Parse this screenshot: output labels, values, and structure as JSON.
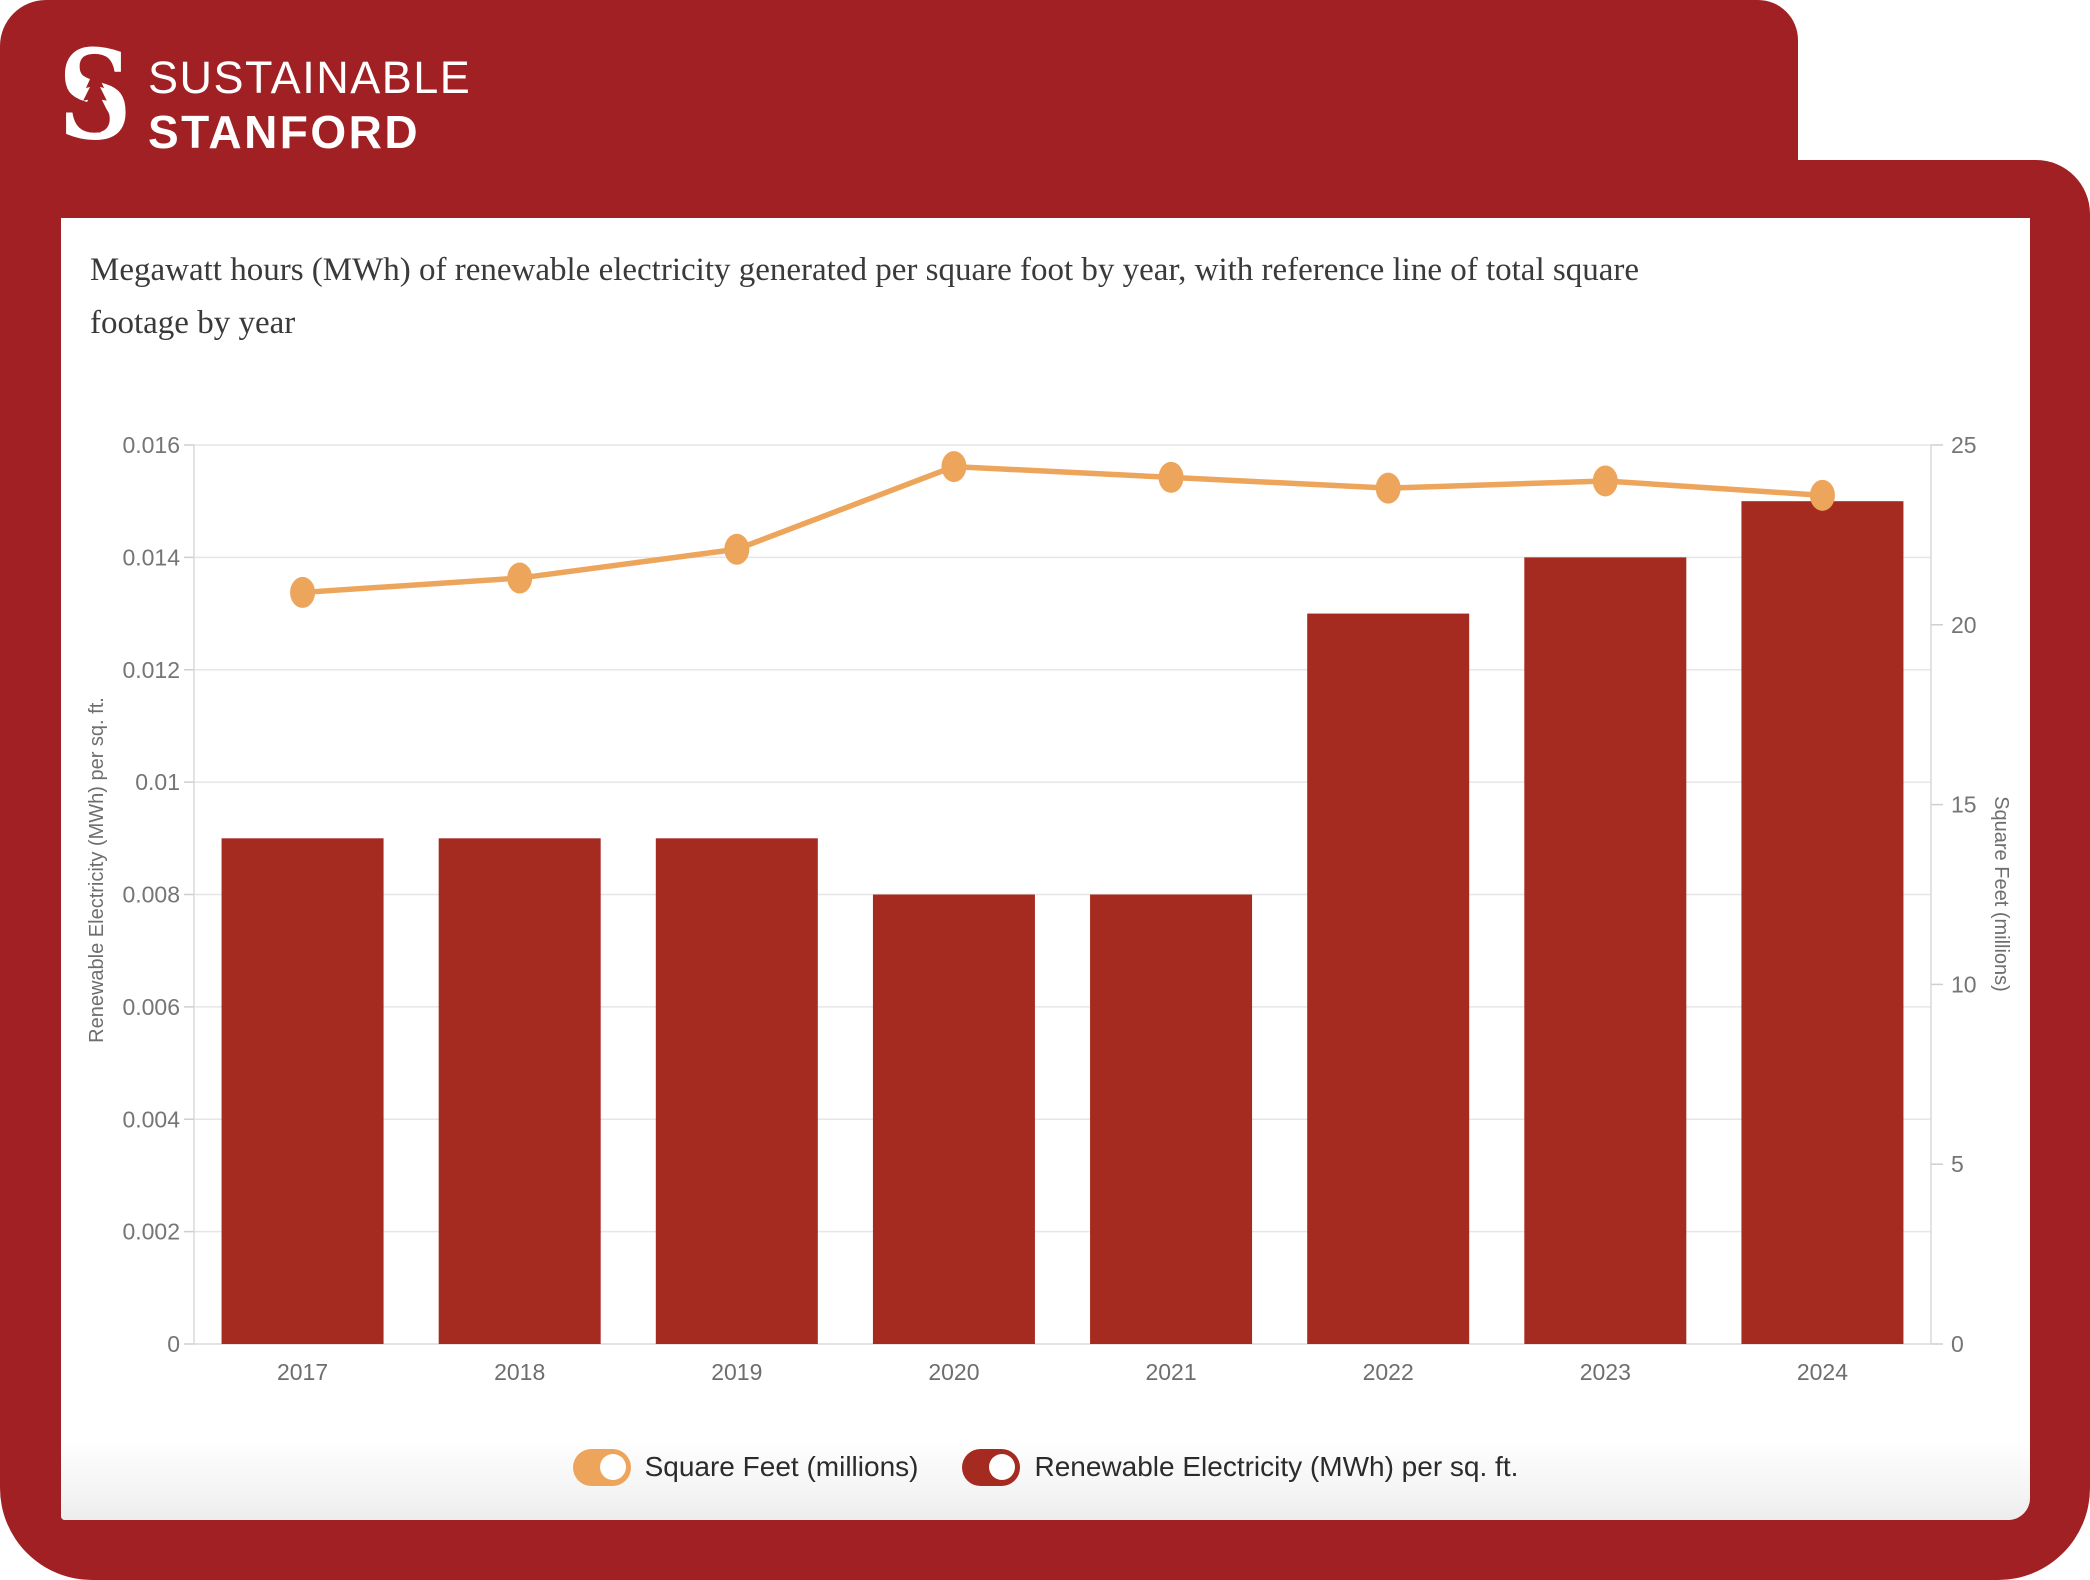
{
  "brand": {
    "line1": "SUSTAINABLE",
    "line2": "STANFORD",
    "logo_glyph": "S",
    "logo_name": "stanford-block-s-tree"
  },
  "title": {
    "line1": "Megawatt hours (MWh) of renewable electricity generated per square foot by year, with reference line of total square",
    "line2": "footage by year"
  },
  "colors": {
    "frame_red": "#A12023",
    "bar_red": "#A52A1F",
    "line_orange": "#EDA55B",
    "grid": "#E6E6E6",
    "axis_line": "#DADADA",
    "tick_text": "#757575",
    "axis_label_text": "#6E6E6E",
    "title_text": "#3A3A3A",
    "legend_text": "#2B2B2B"
  },
  "chart_data": {
    "type": "bar+line (dual axis)",
    "title": "Megawatt hours (MWh) of renewable electricity generated per square foot by year, with reference line of total square footage by year",
    "categories": [
      "2017",
      "2018",
      "2019",
      "2020",
      "2021",
      "2022",
      "2023",
      "2024"
    ],
    "series": [
      {
        "name": "Renewable Electricity (MWh) per sq. ft.",
        "type": "bar",
        "axis": "left",
        "color": "#A52A1F",
        "values": [
          0.009,
          0.009,
          0.009,
          0.008,
          0.008,
          0.013,
          0.014,
          0.015
        ]
      },
      {
        "name": "Square Feet (millions)",
        "type": "line",
        "axis": "right",
        "color": "#EDA55B",
        "values": [
          20.9,
          21.3,
          22.1,
          24.4,
          24.1,
          23.8,
          24.0,
          23.6
        ]
      }
    ],
    "left_axis": {
      "label": "Renewable Electricity (MWh) per sq. ft.",
      "min": 0,
      "max": 0.016,
      "tick_labels": [
        "0",
        "0.002",
        "0.004",
        "0.006",
        "0.008",
        "0.01",
        "0.012",
        "0.014",
        "0.016"
      ]
    },
    "right_axis": {
      "label": "Square Feet (millions)",
      "min": 0,
      "max": 25,
      "tick_labels": [
        "0",
        "5",
        "10",
        "15",
        "20",
        "25"
      ]
    },
    "grid": "horizontal",
    "legend_position": "bottom-center",
    "legend": [
      {
        "label": "Square Feet (millions)",
        "color": "#EDA55B"
      },
      {
        "label": "Renewable Electricity (MWh) per sq. ft.",
        "color": "#A52A1F"
      }
    ]
  }
}
